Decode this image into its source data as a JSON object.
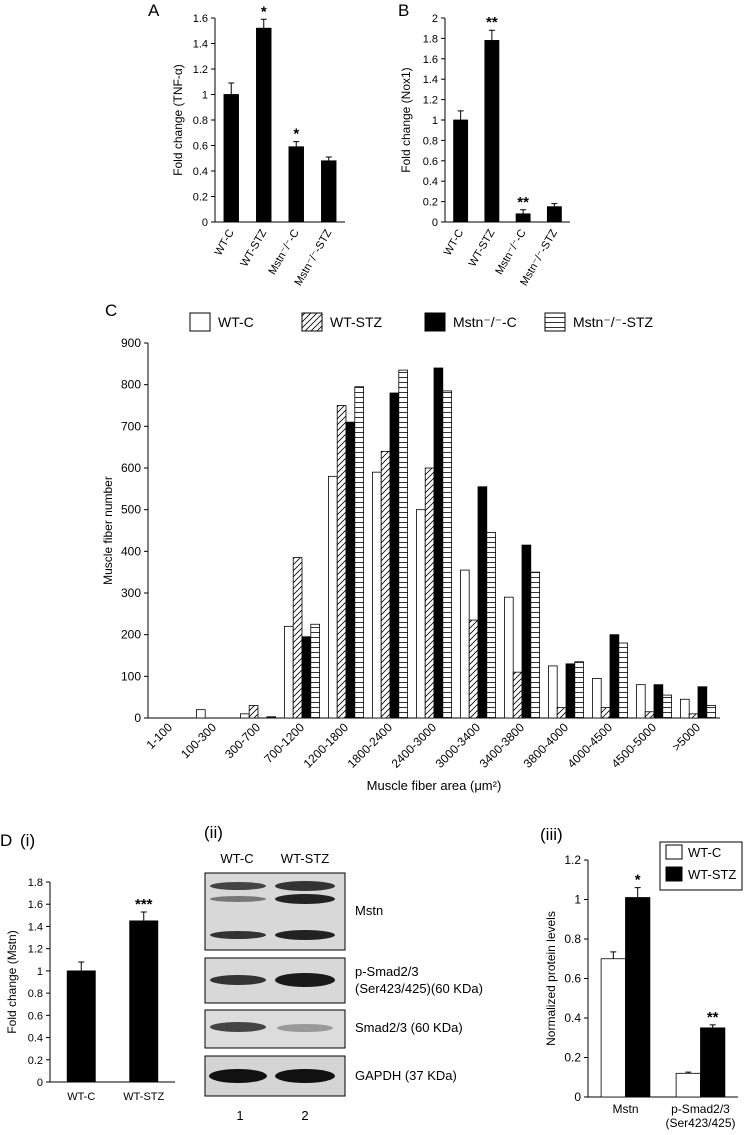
{
  "section_label": "D",
  "chart_data": [
    {
      "type": "bar",
      "panel_label": "A",
      "y_label": "Fold change (TNF-α)",
      "categories": [
        "WT-C",
        "WT-STZ",
        "Mstn⁻/⁻-C",
        "Mstn⁻/⁻-STZ"
      ],
      "values": [
        1.0,
        1.52,
        0.59,
        0.48
      ],
      "errors": [
        0.09,
        0.07,
        0.04,
        0.03
      ],
      "value_annotations": [
        null,
        "*",
        "*",
        null
      ],
      "color": "#000000",
      "ylim": [
        0,
        1.6
      ],
      "yticks": [
        0,
        0.2,
        0.4,
        0.6,
        0.8,
        1,
        1.2,
        1.4,
        1.6
      ]
    },
    {
      "type": "bar",
      "panel_label": "B",
      "y_label": "Fold change (Nox1)",
      "categories": [
        "WT-C",
        "WT-STZ",
        "Mstn⁻/⁻-C",
        "Mstn⁻/⁻-STZ"
      ],
      "values": [
        1.0,
        1.78,
        0.08,
        0.15
      ],
      "errors": [
        0.09,
        0.1,
        0.04,
        0.03
      ],
      "value_annotations": [
        null,
        "**",
        "**",
        null
      ],
      "color": "#000000",
      "ylim": [
        0,
        2
      ],
      "yticks": [
        0,
        0.2,
        0.4,
        0.6,
        0.8,
        1,
        1.2,
        1.4,
        1.6,
        1.8,
        2
      ]
    },
    {
      "type": "bar",
      "panel_label": "C",
      "y_label": "Muscle fiber number",
      "x_label": "Muscle fiber area (μm²)",
      "categories": [
        "1-100",
        "100-300",
        "300-700",
        "700-1200",
        "1200-1800",
        "1800-2400",
        "2400-3000",
        "3000-3400",
        "3400-3800",
        "3800-4000",
        "4000-4500",
        "4500-5000",
        ">5000"
      ],
      "series": [
        {
          "name": "WT-C",
          "color": "#ffffff",
          "hatch": "none",
          "values": [
            0,
            20,
            10,
            220,
            580,
            590,
            500,
            355,
            290,
            125,
            95,
            80,
            45
          ]
        },
        {
          "name": "WT-STZ",
          "color": "#ffffff",
          "hatch": "diagonal",
          "values": [
            0,
            0,
            30,
            385,
            750,
            640,
            600,
            235,
            110,
            25,
            25,
            15,
            10
          ]
        },
        {
          "name": "Mstn⁻/⁻-C",
          "color": "#000000",
          "hatch": "none",
          "values": [
            0,
            0,
            0,
            195,
            710,
            780,
            840,
            555,
            415,
            130,
            200,
            80,
            75
          ]
        },
        {
          "name": "Mstn⁻/⁻-STZ",
          "color": "#ffffff",
          "hatch": "horizontal",
          "values": [
            0,
            0,
            3,
            225,
            795,
            835,
            785,
            445,
            350,
            135,
            180,
            55,
            30
          ]
        }
      ],
      "legend": "top",
      "ylim": [
        0,
        900
      ],
      "yticks": [
        0,
        100,
        200,
        300,
        400,
        500,
        600,
        700,
        800,
        900
      ]
    },
    {
      "type": "bar",
      "panel_label": "(i)",
      "y_label": "Fold change (Mstn)",
      "categories": [
        "WT-C",
        "WT-STZ"
      ],
      "values": [
        1.0,
        1.45
      ],
      "errors": [
        0.08,
        0.08
      ],
      "value_annotations": [
        null,
        "***"
      ],
      "color": "#000000",
      "ylim": [
        0,
        1.8
      ],
      "yticks": [
        0,
        0.2,
        0.4,
        0.6,
        0.8,
        1,
        1.2,
        1.4,
        1.6,
        1.8
      ]
    },
    {
      "type": "bar",
      "panel_label": "(iii)",
      "y_label": "Normalized protein levels",
      "categories": [
        [
          "Mstn"
        ],
        [
          "p-Smad2/3",
          "(Ser423/425)"
        ]
      ],
      "series": [
        {
          "name": "WT-C",
          "color": "#ffffff",
          "hatch": "none",
          "values": [
            0.7,
            0.12
          ],
          "errors": [
            0.035,
            0.006
          ]
        },
        {
          "name": "WT-STZ",
          "color": "#000000",
          "hatch": "none",
          "values": [
            1.01,
            0.35
          ],
          "errors": [
            0.05,
            0.015
          ],
          "value_annotations": [
            "*",
            "**"
          ]
        }
      ],
      "legend": "upper-right",
      "ylim": [
        0,
        1.2
      ],
      "yticks": [
        0,
        0.2,
        0.4,
        0.6,
        0.8,
        1,
        1.2
      ]
    }
  ],
  "blot": {
    "panel_label": "(ii)",
    "lane_headers": [
      "WT-C",
      "WT-STZ"
    ],
    "rows": [
      [
        "Mstn"
      ],
      [
        "p-Smad2/3",
        "(Ser423/425)(60 KDa)"
      ],
      [
        "Smad2/3 (60 KDa)"
      ],
      [
        "GAPDH (37 KDa)"
      ]
    ],
    "lanes": [
      "1",
      "2"
    ]
  }
}
